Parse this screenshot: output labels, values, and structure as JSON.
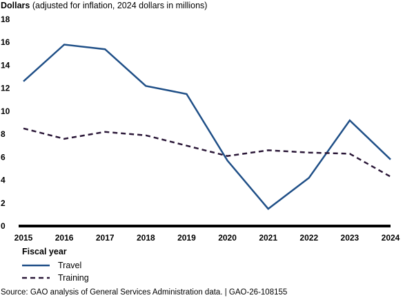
{
  "chart_data": {
    "type": "line",
    "title_bold": "Dollars",
    "title_rest": " (adjusted for inflation, 2024 dollars in millions)",
    "xlabel": "Fiscal year",
    "ylabel": "Dollars (adjusted for inflation, 2024 dollars in millions)",
    "x": [
      "2015",
      "2016",
      "2017",
      "2018",
      "2019",
      "2020",
      "2021",
      "2022",
      "2023",
      "2024"
    ],
    "yticks": [
      0,
      2,
      4,
      6,
      8,
      10,
      12,
      14,
      16,
      18
    ],
    "ylim": [
      0,
      18
    ],
    "grid": false,
    "legend_placement": "bottom-left",
    "series": [
      {
        "name": "Travel",
        "style": "solid",
        "color": "#1f4f87",
        "values": [
          12.6,
          15.8,
          15.4,
          12.2,
          11.5,
          5.7,
          1.5,
          4.2,
          9.2,
          5.8
        ]
      },
      {
        "name": "Training",
        "style": "dashed",
        "color": "#2b1838",
        "values": [
          8.5,
          7.6,
          8.2,
          7.9,
          7.0,
          6.1,
          6.6,
          6.4,
          6.3,
          4.3
        ]
      }
    ]
  },
  "legend": {
    "title": "Fiscal year",
    "items": [
      "Travel",
      "Training"
    ]
  },
  "source": "Source: GAO analysis of General Services Administration data.  |  GAO-26-108155"
}
